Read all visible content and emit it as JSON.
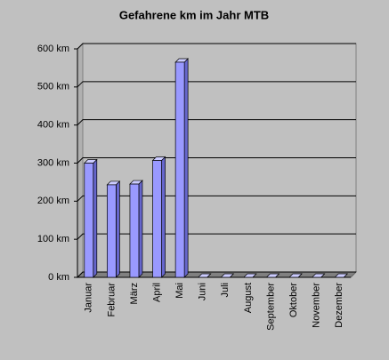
{
  "chart_data": {
    "type": "bar3d",
    "title": "Gefahrene km im Jahr MTB",
    "categories": [
      "Januar",
      "Februar",
      "März",
      "April",
      "Mai",
      "Juni",
      "Juli",
      "August",
      "September",
      "Oktober",
      "November",
      "Dezember"
    ],
    "values": [
      300,
      243,
      245,
      307,
      565,
      0,
      0,
      0,
      0,
      0,
      0,
      0
    ],
    "color": "#9999ff",
    "ylim": [
      0,
      600
    ],
    "yticks": [
      {
        "value": 0,
        "label": "0 km"
      },
      {
        "value": 100,
        "label": "100 km"
      },
      {
        "value": 200,
        "label": "200 km"
      },
      {
        "value": 300,
        "label": "300 km"
      },
      {
        "value": 400,
        "label": "400 km"
      },
      {
        "value": 500,
        "label": "500 km"
      },
      {
        "value": 600,
        "label": "600 km"
      }
    ],
    "grid": true
  }
}
